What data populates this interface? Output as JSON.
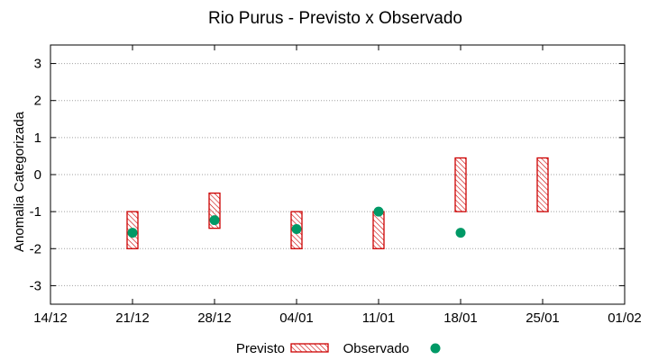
{
  "chart_data": {
    "type": "range-bar-with-points",
    "title": "Rio Purus - Previsto x Observado",
    "xlabel": "",
    "ylabel": "Anomalia Categorizada",
    "x_ticks": [
      "14/12",
      "21/12",
      "28/12",
      "04/01",
      "11/01",
      "18/01",
      "25/01",
      "01/02"
    ],
    "x_range": [
      "14/12",
      "01/02"
    ],
    "y_ticks": [
      3,
      2,
      1,
      0,
      -1,
      -2,
      -3
    ],
    "y_ticks_labels": [
      "3",
      "2",
      "1",
      "0",
      "-1",
      "-2",
      "-3"
    ],
    "ylim": [
      -3.5,
      3.5
    ],
    "grid": "horizontal dotted",
    "legend_placement": "bottom-center",
    "colors": {
      "previsto": "#cc0000",
      "observado": "#009966",
      "grid": "#a0a0a0"
    },
    "series": [
      {
        "name": "Previsto",
        "kind": "range",
        "points": [
          {
            "x": "21/12",
            "low": -2.0,
            "high": -1.0
          },
          {
            "x": "28/12",
            "low": -1.45,
            "high": -0.5
          },
          {
            "x": "04/01",
            "low": -2.0,
            "high": -1.0
          },
          {
            "x": "11/01",
            "low": -2.0,
            "high": -1.0
          },
          {
            "x": "18/01",
            "low": -1.0,
            "high": 0.45
          },
          {
            "x": "25/01",
            "low": -1.0,
            "high": 0.45
          }
        ]
      },
      {
        "name": "Observado",
        "kind": "point",
        "points": [
          {
            "x": "21/12",
            "y": -1.57
          },
          {
            "x": "28/12",
            "y": -1.23
          },
          {
            "x": "04/01",
            "y": -1.47
          },
          {
            "x": "11/01",
            "y": -1.0
          },
          {
            "x": "18/01",
            "y": -1.57
          }
        ]
      }
    ],
    "legend": [
      "Previsto",
      "Observado"
    ]
  }
}
